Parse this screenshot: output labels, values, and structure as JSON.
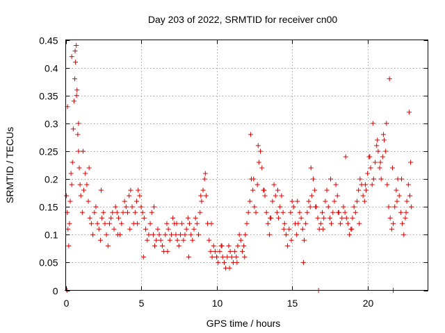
{
  "chart_data": {
    "type": "scatter",
    "title": "Day 203 of 2022, SRMTID for receiver cn00",
    "xlabel": "GPS time / hours",
    "ylabel": "SRMTID / TECUs",
    "xlim": [
      0,
      24
    ],
    "ylim": [
      0,
      0.45
    ],
    "xticks": [
      "0",
      "5",
      "10",
      "15",
      "20"
    ],
    "yticks": [
      "0",
      "0.05",
      "0.1",
      "0.15",
      "0.2",
      "0.25",
      "0.3",
      "0.35",
      "0.4",
      "0.45"
    ],
    "grid": true,
    "marker": "+",
    "color": "#dd0000",
    "series": [
      {
        "name": "SRMTID cn00",
        "x": [
          0.05,
          0.1,
          0.15,
          0.2,
          0.25,
          0.3,
          0.35,
          0.4,
          0.45,
          0.5,
          0.55,
          0.6,
          0.65,
          0.7,
          0.75,
          0.8,
          0.85,
          0.9,
          0.95,
          1.0,
          1.1,
          1.2,
          1.3,
          1.4,
          1.5,
          1.6,
          1.7,
          1.8,
          1.9,
          2.0,
          2.1,
          2.2,
          2.3,
          2.4,
          2.5,
          2.6,
          2.7,
          2.8,
          2.9,
          3.0,
          3.1,
          3.2,
          3.3,
          3.4,
          3.5,
          3.6,
          3.7,
          3.8,
          3.9,
          4.0,
          4.1,
          4.2,
          4.3,
          4.4,
          4.5,
          4.6,
          4.7,
          4.8,
          4.9,
          5.0,
          5.1,
          5.2,
          5.3,
          5.4,
          5.5,
          5.6,
          5.7,
          5.8,
          5.9,
          6.0,
          6.1,
          6.2,
          6.3,
          6.4,
          6.5,
          6.6,
          6.7,
          6.8,
          6.9,
          7.0,
          7.1,
          7.2,
          7.3,
          7.4,
          7.5,
          7.6,
          7.7,
          7.8,
          7.9,
          8.0,
          8.1,
          8.2,
          8.3,
          8.4,
          8.5,
          8.6,
          8.7,
          8.8,
          8.9,
          9.0,
          9.1,
          9.2,
          9.3,
          9.4,
          9.5,
          9.6,
          9.7,
          9.8,
          9.9,
          10.0,
          10.1,
          10.2,
          10.3,
          10.4,
          10.5,
          10.6,
          10.7,
          10.8,
          10.9,
          11.0,
          11.1,
          11.2,
          11.3,
          11.4,
          11.5,
          11.6,
          11.7,
          11.8,
          11.9,
          12.0,
          12.1,
          12.2,
          12.3,
          12.4,
          12.5,
          12.6,
          12.7,
          12.8,
          12.9,
          13.0,
          13.1,
          13.2,
          13.3,
          13.4,
          13.5,
          13.6,
          13.7,
          13.8,
          13.9,
          14.0,
          14.1,
          14.2,
          14.3,
          14.4,
          14.5,
          14.6,
          14.7,
          14.8,
          14.9,
          15.0,
          15.1,
          15.2,
          15.3,
          15.4,
          15.5,
          15.6,
          15.7,
          15.8,
          15.9,
          16.0,
          16.1,
          16.2,
          16.3,
          16.4,
          16.5,
          16.6,
          16.7,
          16.8,
          16.9,
          17.0,
          17.1,
          17.2,
          17.3,
          17.4,
          17.5,
          17.6,
          17.7,
          17.8,
          17.9,
          18.0,
          18.1,
          18.2,
          18.3,
          18.4,
          18.5,
          18.6,
          18.7,
          18.8,
          18.9,
          19.0,
          19.1,
          19.2,
          19.3,
          19.4,
          19.5,
          19.6,
          19.7,
          19.8,
          19.9,
          20.0,
          20.1,
          20.2,
          20.3,
          20.4,
          20.5,
          20.6,
          20.7,
          20.8,
          20.9,
          21.0,
          21.1,
          21.2,
          21.3,
          21.4,
          21.5,
          21.6,
          21.7,
          21.8,
          21.9,
          22.0,
          22.1,
          22.2,
          22.3,
          22.4,
          22.5,
          22.6,
          22.7,
          22.8,
          22.9,
          0.12,
          0.4,
          0.62,
          0.72,
          0.85,
          1.15,
          1.55,
          2.35,
          3.45,
          4.25,
          4.75,
          5.15,
          5.85,
          6.75,
          7.35,
          8.15,
          8.95,
          9.25,
          9.65,
          10.35,
          10.85,
          11.35,
          11.85,
          12.25,
          12.45,
          12.75,
          13.15,
          13.55,
          14.05,
          14.45,
          14.95,
          15.35,
          15.75,
          16.25,
          16.55,
          17.05,
          17.55,
          18.05,
          18.55,
          18.95,
          19.45,
          19.85,
          20.15,
          20.35,
          20.65,
          20.85,
          21.05,
          21.25,
          21.45,
          21.65,
          21.95,
          22.25,
          22.55,
          22.75,
          22.85,
          0.08,
          16.75,
          21.7
        ],
        "y": [
          0.17,
          0.14,
          0.11,
          0.08,
          0.12,
          0.16,
          0.21,
          0.19,
          0.23,
          0.29,
          0.34,
          0.38,
          0.41,
          0.44,
          0.36,
          0.28,
          0.25,
          0.22,
          0.19,
          0.17,
          0.14,
          0.18,
          0.21,
          0.19,
          0.16,
          0.13,
          0.12,
          0.1,
          0.14,
          0.15,
          0.12,
          0.11,
          0.09,
          0.13,
          0.14,
          0.12,
          0.1,
          0.08,
          0.12,
          0.13,
          0.14,
          0.11,
          0.15,
          0.14,
          0.13,
          0.1,
          0.12,
          0.14,
          0.16,
          0.15,
          0.14,
          0.17,
          0.18,
          0.15,
          0.12,
          0.14,
          0.16,
          0.18,
          0.17,
          0.15,
          0.14,
          0.13,
          0.11,
          0.09,
          0.1,
          0.12,
          0.14,
          0.1,
          0.08,
          0.09,
          0.11,
          0.1,
          0.09,
          0.08,
          0.07,
          0.1,
          0.12,
          0.11,
          0.09,
          0.1,
          0.13,
          0.12,
          0.1,
          0.09,
          0.08,
          0.1,
          0.12,
          0.09,
          0.1,
          0.11,
          0.13,
          0.12,
          0.1,
          0.09,
          0.11,
          0.13,
          0.12,
          0.1,
          0.14,
          0.16,
          0.18,
          0.2,
          0.17,
          0.12,
          0.09,
          0.07,
          0.06,
          0.08,
          0.07,
          0.06,
          0.05,
          0.07,
          0.08,
          0.06,
          0.05,
          0.04,
          0.06,
          0.08,
          0.07,
          0.06,
          0.05,
          0.07,
          0.06,
          0.08,
          0.1,
          0.09,
          0.07,
          0.08,
          0.1,
          0.12,
          0.14,
          0.16,
          0.2,
          0.18,
          0.15,
          0.14,
          0.19,
          0.23,
          0.25,
          0.22,
          0.18,
          0.17,
          0.14,
          0.12,
          0.1,
          0.13,
          0.16,
          0.19,
          0.17,
          0.14,
          0.13,
          0.15,
          0.17,
          0.14,
          0.12,
          0.1,
          0.08,
          0.11,
          0.14,
          0.16,
          0.15,
          0.12,
          0.1,
          0.12,
          0.14,
          0.13,
          0.11,
          0.09,
          0.12,
          0.14,
          0.16,
          0.15,
          0.17,
          0.2,
          0.18,
          0.15,
          0.13,
          0.11,
          0.12,
          0.14,
          0.13,
          0.16,
          0.18,
          0.15,
          0.13,
          0.12,
          0.14,
          0.16,
          0.19,
          0.17,
          0.14,
          0.12,
          0.13,
          0.15,
          0.14,
          0.13,
          0.12,
          0.1,
          0.11,
          0.13,
          0.15,
          0.14,
          0.16,
          0.18,
          0.2,
          0.19,
          0.17,
          0.16,
          0.18,
          0.21,
          0.24,
          0.22,
          0.19,
          0.2,
          0.23,
          0.26,
          0.25,
          0.22,
          0.2,
          0.24,
          0.27,
          0.25,
          0.19,
          0.15,
          0.13,
          0.11,
          0.12,
          0.15,
          0.18,
          0.2,
          0.17,
          0.14,
          0.12,
          0.1,
          0.13,
          0.16,
          0.19,
          0.17,
          0.15,
          0.33,
          0.42,
          0.43,
          0.35,
          0.3,
          0.25,
          0.22,
          0.18,
          0.1,
          0.11,
          0.12,
          0.06,
          0.15,
          0.07,
          0.12,
          0.06,
          0.17,
          0.21,
          0.12,
          0.08,
          0.04,
          0.05,
          0.06,
          0.28,
          0.2,
          0.26,
          0.18,
          0.13,
          0.18,
          0.11,
          0.09,
          0.16,
          0.05,
          0.22,
          0.15,
          0.11,
          0.2,
          0.14,
          0.24,
          0.11,
          0.12,
          0.19,
          0.24,
          0.3,
          0.27,
          0.23,
          0.28,
          0.3,
          0.38,
          0.22,
          0.16,
          0.2,
          0.14,
          0.32,
          0.23,
          0.0,
          0.0,
          0.0
        ]
      }
    ]
  }
}
